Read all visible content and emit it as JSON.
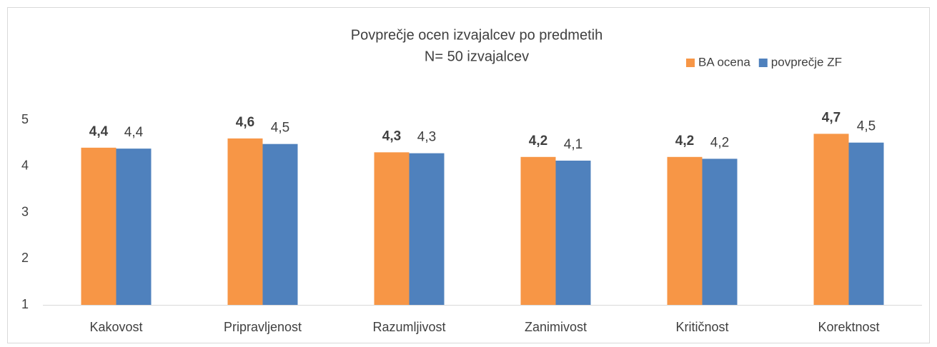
{
  "chart_data": {
    "type": "bar",
    "title": "Povprečje ocen izvajalcev po predmetih",
    "subtitle": "N= 50 izvajalcev",
    "categories": [
      "Kakovost",
      "Pripravljenost",
      "Razumljivost",
      "Zanimivost",
      "Kritičnost",
      "Korektnost"
    ],
    "series": [
      {
        "name": "BA ocena",
        "color": "#f79646",
        "values": [
          4.4,
          4.6,
          4.3,
          4.2,
          4.2,
          4.7
        ],
        "value_labels": [
          "4,4",
          "4,6",
          "4,3",
          "4,2",
          "4,2",
          "4,7"
        ]
      },
      {
        "name": "povprečje ZF",
        "color": "#4f81bd",
        "values": [
          4.38,
          4.48,
          4.28,
          4.12,
          4.16,
          4.51
        ],
        "value_labels": [
          "4,4",
          "4,5",
          "4,3",
          "4,1",
          "4,2",
          "4,5"
        ]
      }
    ],
    "ylim": [
      1,
      5
    ],
    "yticks": [
      1,
      2,
      3,
      4,
      5
    ],
    "grid": false,
    "legend": "top-right"
  }
}
